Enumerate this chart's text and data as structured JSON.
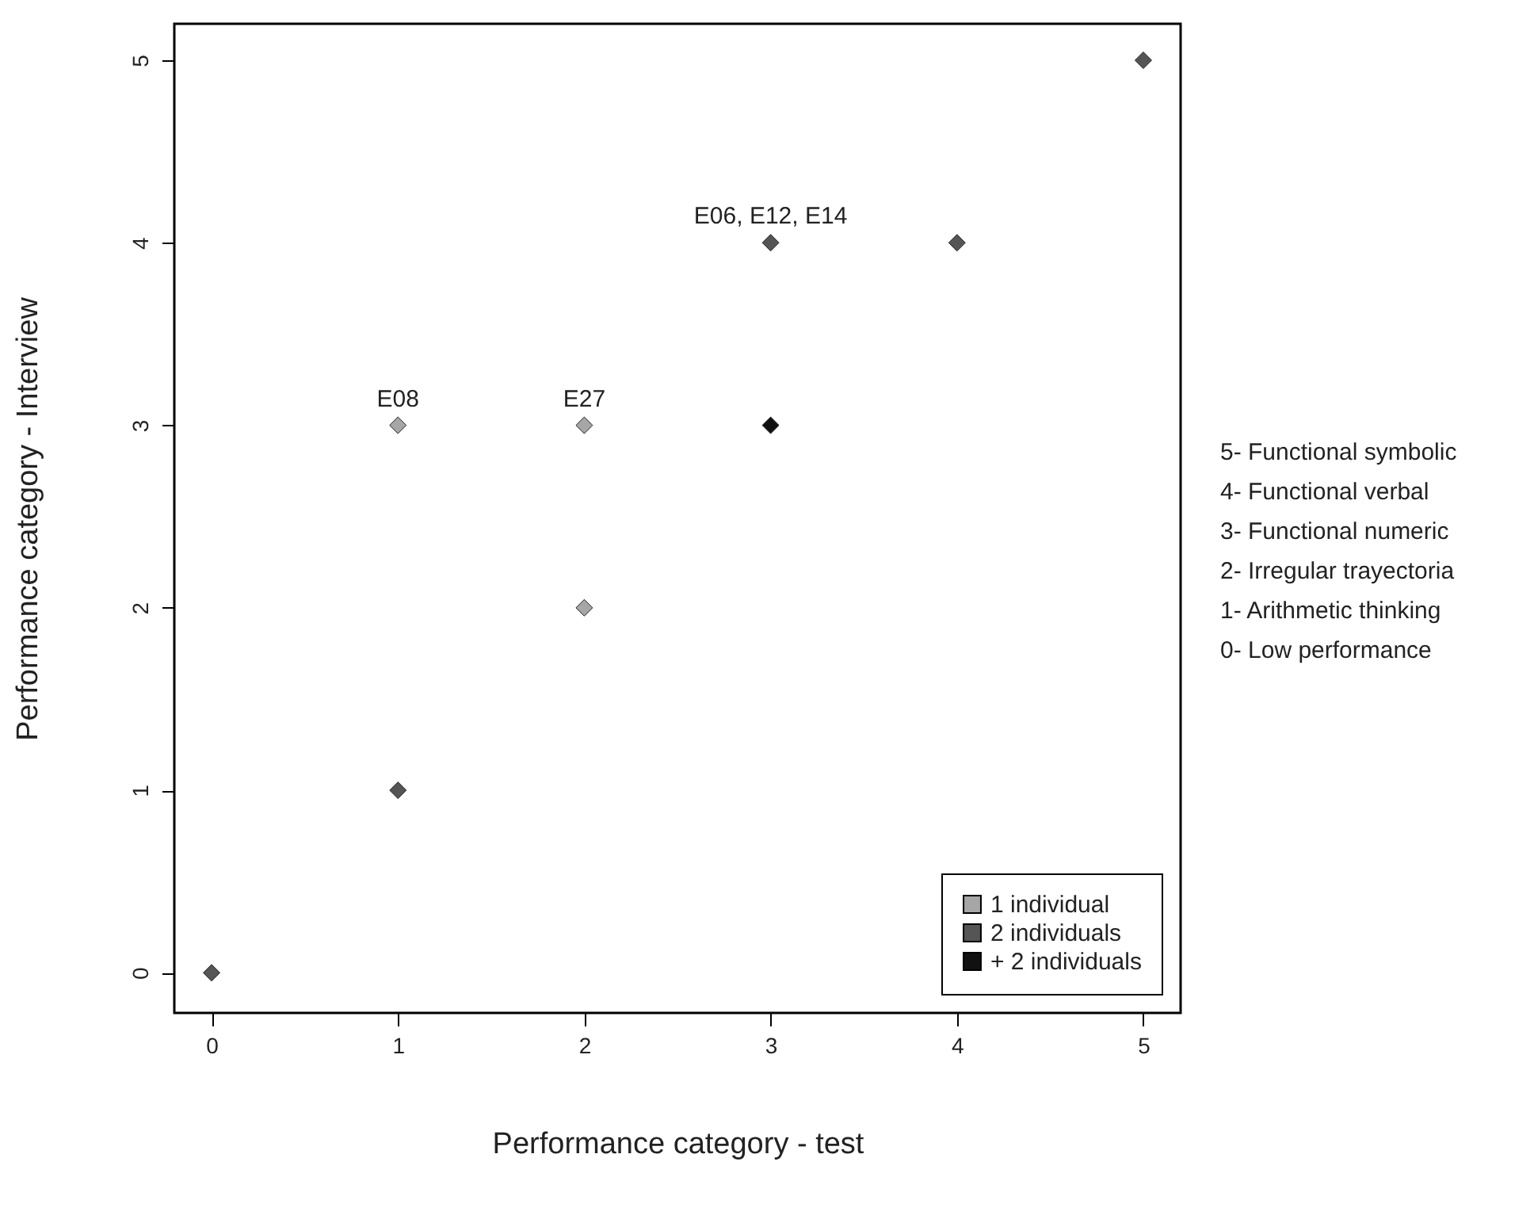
{
  "chart_data": {
    "type": "scatter",
    "xlabel": "Performance category - test",
    "ylabel": "Performance category - Interview",
    "marker": "diamond",
    "legend": "bottom right",
    "grid": false,
    "xlim": [
      -0.2,
      5.2
    ],
    "ylim": [
      -0.22,
      5.2
    ],
    "xticks": [
      0,
      1,
      2,
      3,
      4,
      5
    ],
    "yticks": [
      0,
      1,
      2,
      3,
      4,
      5
    ],
    "series": [
      {
        "name": "1 individual",
        "color": "#a6a6a6",
        "x": [
          1,
          2,
          2
        ],
        "values": [
          3,
          3,
          2
        ]
      },
      {
        "name": "2 individuals",
        "color": "#555555",
        "x": [
          0,
          1,
          3,
          4,
          5
        ],
        "values": [
          0,
          1,
          4,
          4,
          5
        ]
      },
      {
        "name": "+ 2 individuals",
        "color": "#111111",
        "x": [
          3
        ],
        "values": [
          3
        ]
      }
    ],
    "annotations": [
      {
        "text": "E08",
        "x": 1,
        "y": 3
      },
      {
        "text": "E27",
        "x": 2,
        "y": 3
      },
      {
        "text": "E06, E12, E14",
        "x": 3,
        "y": 4
      },
      "5- Functional symbolic",
      "4- Functional verbal",
      "3- Functional numeric",
      "2- Irregular trayectoria",
      "1- Arithmetic thinking",
      "0- Low performance"
    ]
  }
}
